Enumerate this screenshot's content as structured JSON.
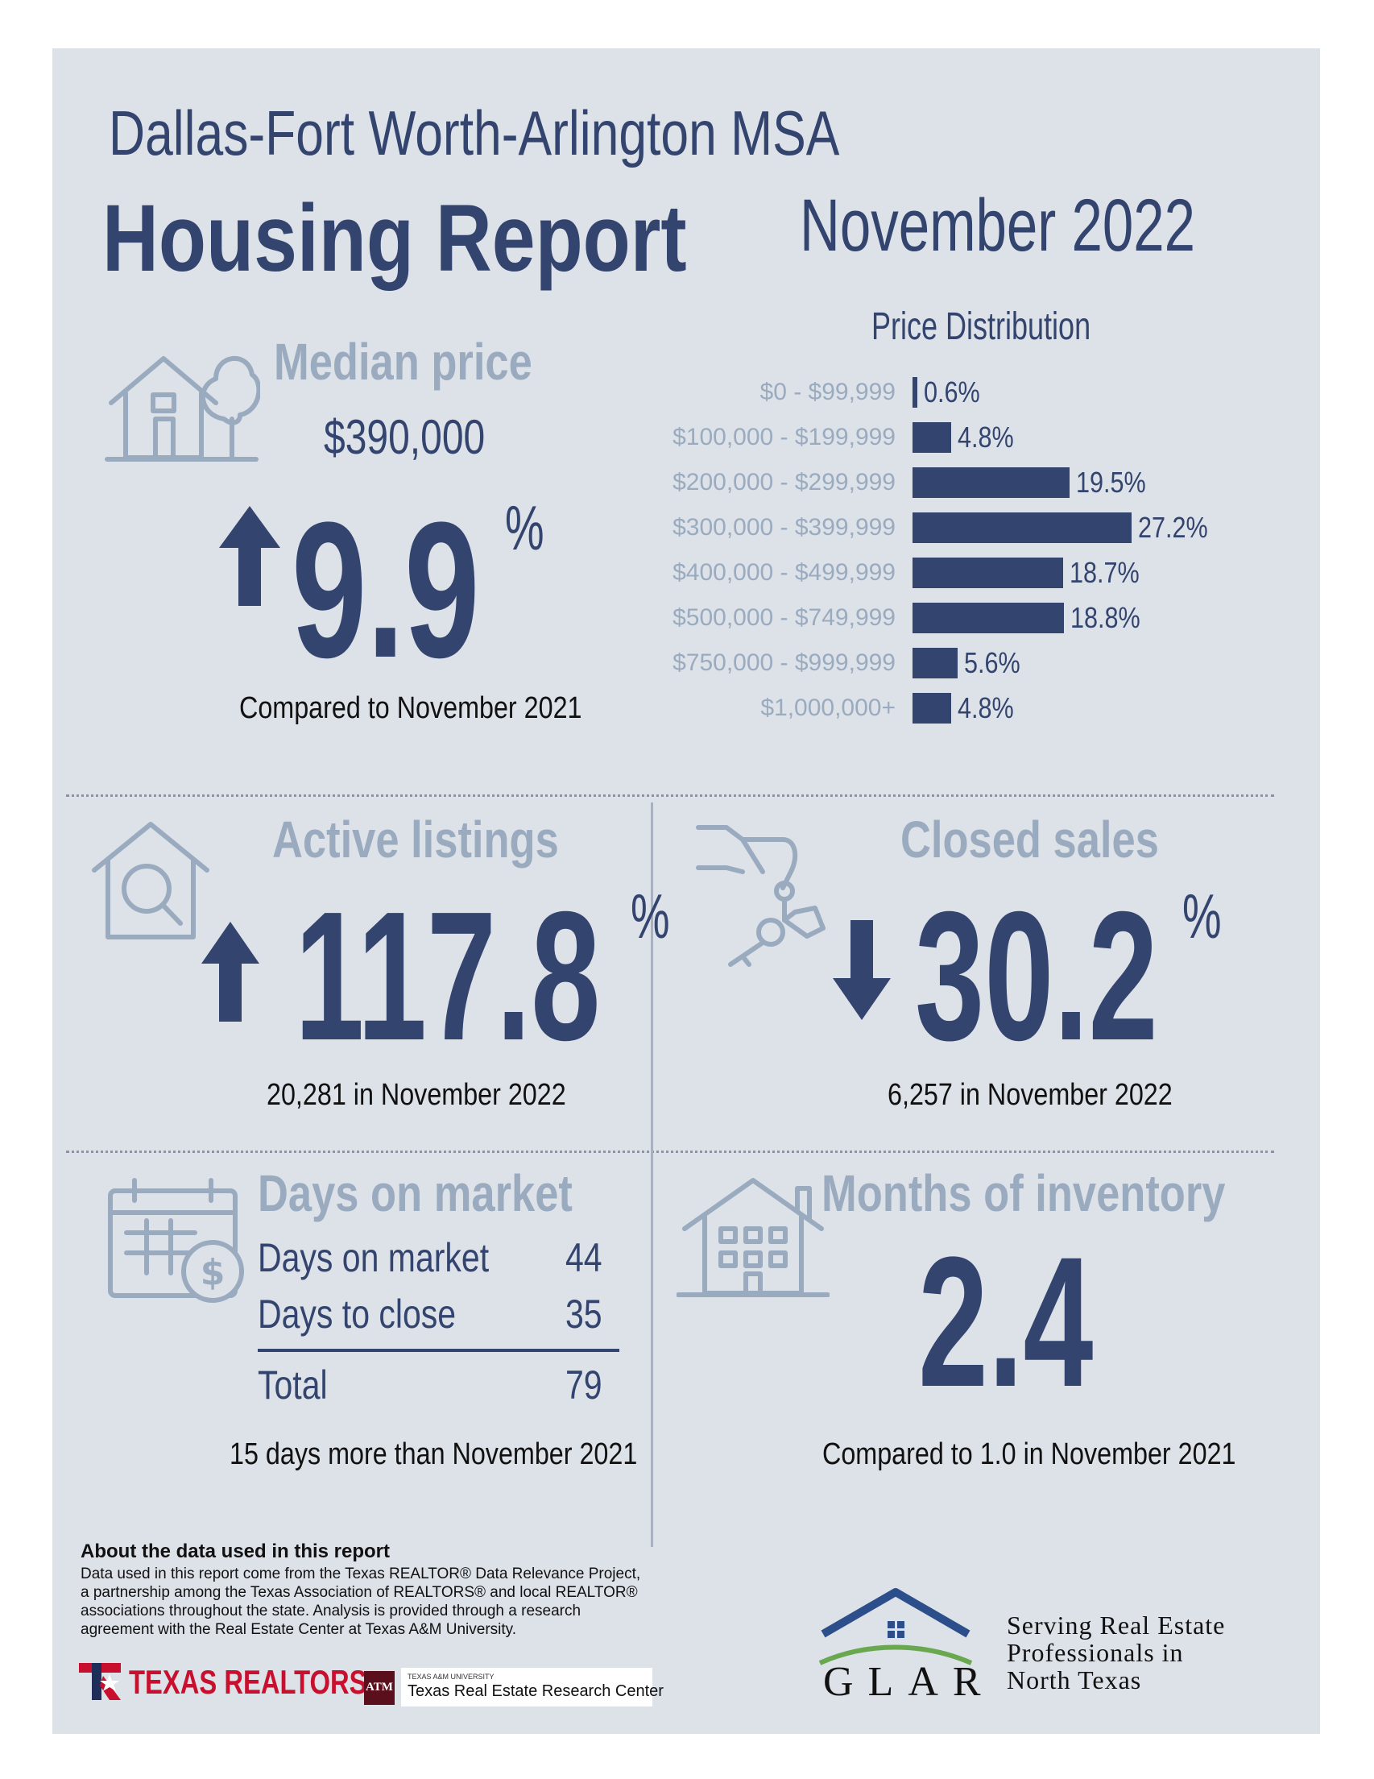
{
  "header": {
    "region": "Dallas-Fort Worth-Arlington MSA",
    "title": "Housing Report",
    "date": "November 2022"
  },
  "median_price": {
    "heading": "Median price",
    "value": "$390,000",
    "change": "9.9",
    "percent_sign": "%",
    "direction": "up",
    "caption": "Compared to November 2021"
  },
  "price_distribution": {
    "heading": "Price Distribution"
  },
  "chart_data": {
    "type": "bar",
    "title": "Price Distribution",
    "orientation": "horizontal",
    "categories": [
      "$0 - $99,999",
      "$100,000 - $199,999",
      "$200,000 - $299,999",
      "$300,000 - $399,999",
      "$400,000 - $499,999",
      "$500,000 - $749,999",
      "$750,000 - $999,999",
      "$1,000,000+"
    ],
    "values": [
      0.6,
      4.8,
      19.5,
      27.2,
      18.7,
      18.8,
      5.6,
      4.8
    ],
    "value_labels": [
      "0.6%",
      "4.8%",
      "19.5%",
      "27.2%",
      "18.7%",
      "18.8%",
      "5.6%",
      "4.8%"
    ],
    "xlim": [
      0,
      27.2
    ],
    "unit": "%"
  },
  "active_listings": {
    "heading": "Active listings",
    "change": "117.8",
    "percent_sign": "%",
    "direction": "up",
    "caption": "20,281 in November 2022"
  },
  "closed_sales": {
    "heading": "Closed sales",
    "change": "30.2",
    "percent_sign": "%",
    "direction": "down",
    "caption": "6,257 in November 2022"
  },
  "days_on_market": {
    "heading": "Days on market",
    "rows": [
      {
        "label": "Days on market",
        "value": "44"
      },
      {
        "label": "Days to close",
        "value": "35"
      }
    ],
    "total_label": "Total",
    "total_value": "79",
    "caption": "15 days more than November 2021"
  },
  "months_inventory": {
    "heading": "Months of inventory",
    "value": "2.4",
    "caption": "Compared to 1.0 in November 2021"
  },
  "footer": {
    "about_heading": "About the data used in this report",
    "about_text": "Data used in this report come from the Texas REALTOR® Data Relevance Project, a partnership among the Texas Association of REALTORS® and local REALTOR® associations throughout the state. Analysis is provided through a research agreement with the Real Estate Center at Texas A&M University.",
    "texas_realtors": "TEXAS REALTORS",
    "tamu_small": "TEXAS A&M UNIVERSITY",
    "tamu_center": "Texas Real Estate Research Center",
    "tamu_mark": "ATM",
    "glar_word": "GLAR",
    "glar_tagline": [
      "Serving Real Estate",
      "Professionals in",
      "North Texas"
    ]
  },
  "colors": {
    "navy": "#33446e",
    "muted": "#9aabbf",
    "panel": "#dde1e8",
    "brand_red": "#c8102e",
    "glar_green": "#6aa84f"
  }
}
